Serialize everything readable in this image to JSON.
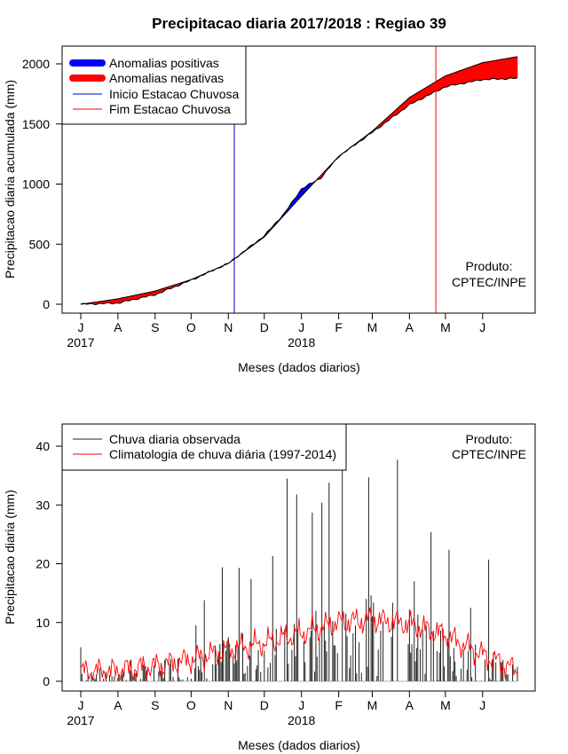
{
  "chart_data": [
    {
      "type": "area",
      "title": "Precipitacao diaria 2017/2018 : Regiao 39",
      "xlabel": "Meses (dados diarios)",
      "ylabel": "Precipitacao diaria acumulada (mm)",
      "ylim": [
        0,
        2000
      ],
      "yticks": [
        "0",
        "500",
        "1000",
        "1500",
        "2000"
      ],
      "month_ticks": [
        "J",
        "A",
        "S",
        "O",
        "N",
        "D",
        "J",
        "F",
        "M",
        "A",
        "M",
        "J"
      ],
      "year_labels": [
        "2017",
        "2018"
      ],
      "legend": {
        "positive": "Anomalias positivas",
        "negative": "Anomalias negativas",
        "start": "Inicio Estacao Chuvosa",
        "end": "Fim Estacao Chuvosa"
      },
      "product_label": [
        "Produto:",
        "CPTEC/INPE"
      ],
      "rainy_season_start_day": 128,
      "rainy_season_end_day": 296,
      "days": 365,
      "climatology_cumulative": {
        "day": [
          0,
          31,
          62,
          92,
          123,
          153,
          184,
          215,
          243,
          274,
          304,
          335,
          364
        ],
        "value": [
          0,
          45,
          110,
          205,
          340,
          560,
          900,
          1230,
          1440,
          1720,
          1900,
          2010,
          2060
        ]
      },
      "observed_cumulative": {
        "day": [
          0,
          31,
          62,
          92,
          123,
          153,
          170,
          184,
          200,
          215,
          243,
          274,
          304,
          335,
          364
        ],
        "value": [
          0,
          10,
          80,
          200,
          340,
          570,
          760,
          960,
          1050,
          1230,
          1430,
          1660,
          1810,
          1870,
          1880
        ]
      },
      "colors": {
        "positive": "#0000ff",
        "negative": "#ff0000",
        "start_line": "#0000cd",
        "end_line": "#ff0000"
      }
    },
    {
      "type": "line",
      "xlabel": "Meses (dados diarios)",
      "ylabel": "Precipitacao diaria (mm)",
      "ylim": [
        0,
        42
      ],
      "yticks": [
        "0",
        "10",
        "20",
        "30",
        "40"
      ],
      "month_ticks": [
        "J",
        "A",
        "S",
        "O",
        "N",
        "D",
        "J",
        "F",
        "M",
        "A",
        "M",
        "J"
      ],
      "year_labels": [
        "2017",
        "2018"
      ],
      "legend": {
        "observed": "Chuva diaria observada",
        "climatology": "Climatologia de chuva diária (1997-2014)"
      },
      "product_label": [
        "Produto:",
        "CPTEC/INPE"
      ],
      "days": 365,
      "observed_peaks": [
        {
          "day": 0,
          "value": 5.8
        },
        {
          "day": 42,
          "value": 3.7
        },
        {
          "day": 96,
          "value": 9.5
        },
        {
          "day": 103,
          "value": 13.8
        },
        {
          "day": 118,
          "value": 19.4
        },
        {
          "day": 132,
          "value": 19.3
        },
        {
          "day": 142,
          "value": 17.4
        },
        {
          "day": 160,
          "value": 21.3
        },
        {
          "day": 172,
          "value": 34.5
        },
        {
          "day": 180,
          "value": 31.8
        },
        {
          "day": 193,
          "value": 28.7
        },
        {
          "day": 201,
          "value": 30.4
        },
        {
          "day": 207,
          "value": 33.8
        },
        {
          "day": 218,
          "value": 39.0
        },
        {
          "day": 240,
          "value": 34.7
        },
        {
          "day": 264,
          "value": 37.7
        },
        {
          "day": 278,
          "value": 17.0
        },
        {
          "day": 292,
          "value": 25.4
        },
        {
          "day": 307,
          "value": 22.4
        },
        {
          "day": 325,
          "value": 12.5
        },
        {
          "day": 340,
          "value": 20.7
        }
      ],
      "climatology": {
        "day": [
          0,
          31,
          62,
          92,
          123,
          153,
          184,
          215,
          243,
          274,
          304,
          335,
          364
        ],
        "value": [
          1.6,
          1.8,
          2.6,
          3.7,
          5.4,
          6.5,
          8.2,
          10.0,
          10.5,
          9.8,
          7.8,
          4.5,
          1.8
        ]
      },
      "colors": {
        "observed": "#222222",
        "climatology": "#ff0000"
      }
    }
  ]
}
